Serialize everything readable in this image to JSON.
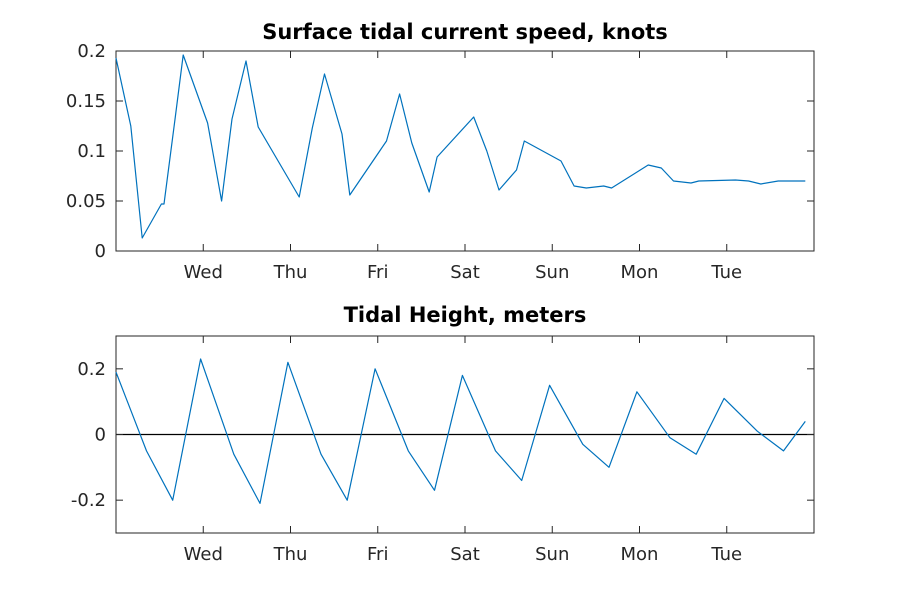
{
  "colors": {
    "series": "#0072BD",
    "axis": "#262626",
    "zero_line": "#000000"
  },
  "chart_data": [
    {
      "type": "line",
      "title": "Surface tidal current speed, knots",
      "xlabel": "",
      "ylabel": "",
      "x_unit": "days",
      "xlim": [
        0,
        8
      ],
      "ylim": [
        0,
        0.2
      ],
      "y_ticks": [
        0,
        0.05,
        0.1,
        0.15,
        0.2
      ],
      "y_tick_labels": [
        "0",
        "0.05",
        "0.1",
        "0.15",
        "0.2"
      ],
      "x_ticks": [
        1,
        2,
        3,
        4,
        5,
        6,
        7
      ],
      "x_tick_labels": [
        "Wed",
        "Thu",
        "Fri",
        "Sat",
        "Sun",
        "Mon",
        "Tue"
      ],
      "grid": false,
      "zero_line": false,
      "series": [
        {
          "x": [
            0.0,
            0.17,
            0.3,
            0.52,
            0.55,
            0.68,
            0.77,
            1.05,
            1.21,
            1.33,
            1.49,
            1.63,
            2.1,
            2.25,
            2.39,
            2.59,
            2.68,
            3.1,
            3.25,
            3.39,
            3.59,
            3.68,
            4.1,
            4.25,
            4.39,
            4.59,
            4.68,
            5.1,
            5.25,
            5.39,
            5.59,
            5.68,
            6.1,
            6.25,
            6.39,
            6.59,
            6.68,
            7.1,
            7.25,
            7.39,
            7.59,
            7.68,
            7.9
          ],
          "y": [
            0.193,
            0.125,
            0.013,
            0.047,
            0.047,
            0.134,
            0.196,
            0.128,
            0.05,
            0.132,
            0.19,
            0.124,
            0.054,
            0.123,
            0.177,
            0.117,
            0.056,
            0.11,
            0.157,
            0.108,
            0.059,
            0.094,
            0.134,
            0.1,
            0.061,
            0.081,
            0.11,
            0.09,
            0.065,
            0.063,
            0.065,
            0.063,
            0.086,
            0.083,
            0.07,
            0.068,
            0.07,
            0.071,
            0.07,
            0.067,
            0.07,
            0.07,
            0.07
          ]
        }
      ]
    },
    {
      "type": "line",
      "title": "Tidal Height, meters",
      "xlabel": "",
      "ylabel": "",
      "x_unit": "days",
      "xlim": [
        0,
        8
      ],
      "ylim": [
        -0.3,
        0.3
      ],
      "y_ticks": [
        -0.2,
        0,
        0.2
      ],
      "y_tick_labels": [
        "-0.2",
        "0",
        "0.2"
      ],
      "x_ticks": [
        1,
        2,
        3,
        4,
        5,
        6,
        7
      ],
      "x_tick_labels": [
        "Wed",
        "Thu",
        "Fri",
        "Sat",
        "Sun",
        "Mon",
        "Tue"
      ],
      "grid": false,
      "zero_line": true,
      "series": [
        {
          "x": [
            0.0,
            0.35,
            0.65,
            0.97,
            1.35,
            1.65,
            1.97,
            2.35,
            2.65,
            2.97,
            3.35,
            3.65,
            3.97,
            4.35,
            4.65,
            4.97,
            5.35,
            5.65,
            5.97,
            6.35,
            6.65,
            6.97,
            7.35,
            7.65,
            7.9
          ],
          "y": [
            0.19,
            -0.05,
            -0.2,
            0.23,
            -0.06,
            -0.21,
            0.22,
            -0.06,
            -0.2,
            0.2,
            -0.05,
            -0.17,
            0.18,
            -0.05,
            -0.14,
            0.15,
            -0.03,
            -0.1,
            0.13,
            -0.01,
            -0.06,
            0.11,
            0.01,
            -0.05,
            0.04
          ]
        }
      ]
    }
  ]
}
